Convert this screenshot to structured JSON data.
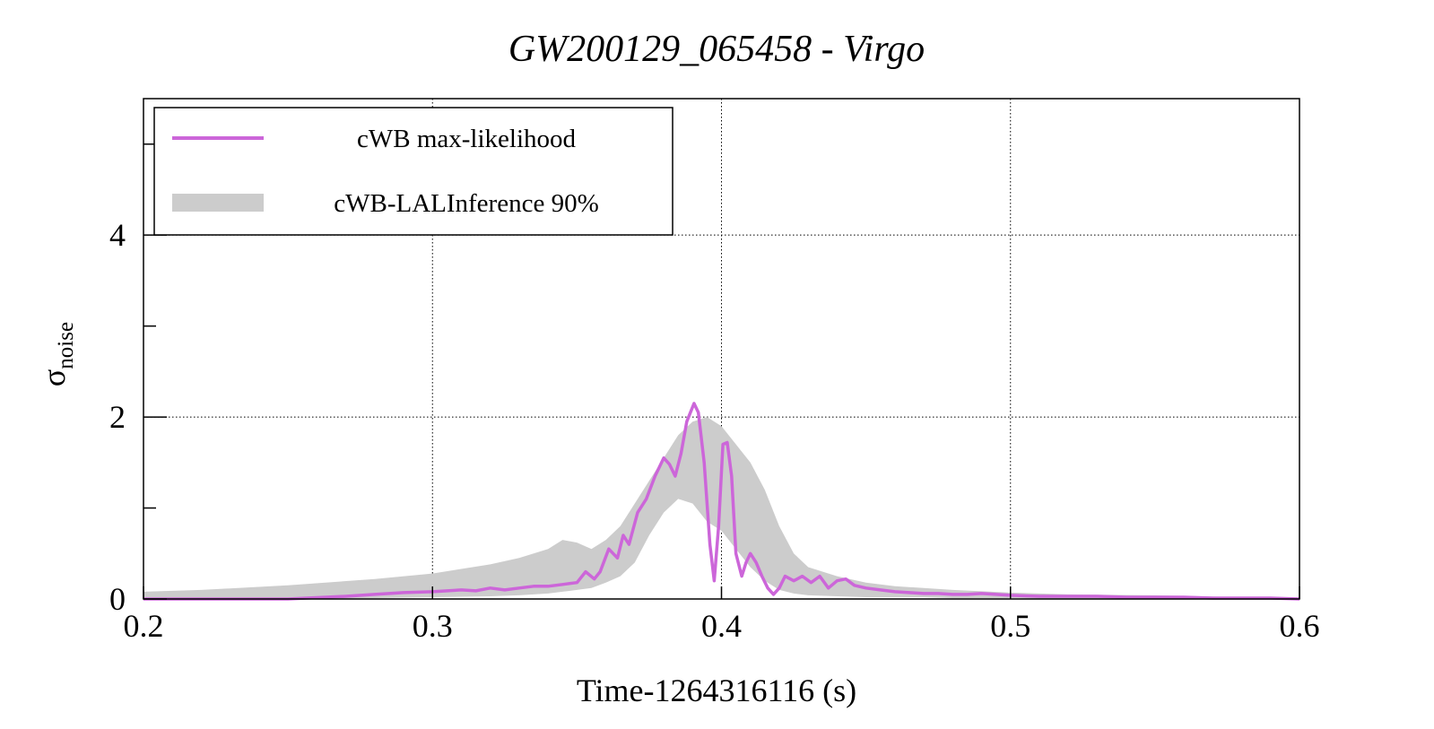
{
  "chart_data": {
    "type": "line",
    "title": "GW200129_065458 - Virgo",
    "xlabel": "Time-1264316116 (s)",
    "ylabel_main": "σ",
    "ylabel_sub": "noise",
    "xlim": [
      0.2,
      0.6
    ],
    "ylim": [
      0,
      5.5
    ],
    "xticks": [
      0.2,
      0.3,
      0.4,
      0.5,
      0.6
    ],
    "xtick_labels": [
      "0.2",
      "0.3",
      "0.4",
      "0.5",
      "0.6"
    ],
    "yticks": [
      0,
      2,
      4
    ],
    "ytick_labels": [
      "0",
      "2",
      "4"
    ],
    "ytick_minor": [
      1,
      3,
      5
    ],
    "grid": true,
    "legend_position": "top-left",
    "colors": {
      "line": "#cc66d9",
      "band": "#cccccc"
    },
    "series": [
      {
        "name": "cWB max-likelihood",
        "kind": "line",
        "x": [
          0.2,
          0.25,
          0.27,
          0.28,
          0.29,
          0.3,
          0.31,
          0.315,
          0.32,
          0.325,
          0.33,
          0.335,
          0.34,
          0.345,
          0.35,
          0.353,
          0.356,
          0.358,
          0.361,
          0.364,
          0.366,
          0.368,
          0.371,
          0.374,
          0.377,
          0.38,
          0.382,
          0.384,
          0.386,
          0.388,
          0.3905,
          0.392,
          0.394,
          0.396,
          0.3975,
          0.399,
          0.4005,
          0.402,
          0.4035,
          0.405,
          0.407,
          0.4085,
          0.41,
          0.412,
          0.414,
          0.416,
          0.418,
          0.42,
          0.422,
          0.425,
          0.428,
          0.431,
          0.434,
          0.437,
          0.44,
          0.443,
          0.446,
          0.45,
          0.455,
          0.46,
          0.465,
          0.47,
          0.475,
          0.48,
          0.485,
          0.49,
          0.495,
          0.5,
          0.51,
          0.52,
          0.53,
          0.54,
          0.55,
          0.56,
          0.57,
          0.58,
          0.59,
          0.6
        ],
        "y": [
          0.0,
          0.0,
          0.03,
          0.05,
          0.07,
          0.08,
          0.1,
          0.09,
          0.12,
          0.1,
          0.12,
          0.14,
          0.14,
          0.16,
          0.18,
          0.3,
          0.22,
          0.3,
          0.55,
          0.45,
          0.7,
          0.6,
          0.95,
          1.1,
          1.35,
          1.55,
          1.48,
          1.35,
          1.6,
          1.95,
          2.15,
          2.05,
          1.5,
          0.6,
          0.2,
          0.8,
          1.7,
          1.72,
          1.35,
          0.5,
          0.25,
          0.4,
          0.5,
          0.4,
          0.25,
          0.12,
          0.05,
          0.12,
          0.25,
          0.2,
          0.25,
          0.18,
          0.25,
          0.12,
          0.2,
          0.22,
          0.15,
          0.12,
          0.1,
          0.08,
          0.07,
          0.06,
          0.06,
          0.05,
          0.05,
          0.06,
          0.05,
          0.04,
          0.03,
          0.03,
          0.03,
          0.02,
          0.02,
          0.02,
          0.01,
          0.01,
          0.01,
          0.0
        ]
      },
      {
        "name": "cWB-LALInference 90%",
        "kind": "band",
        "x": [
          0.2,
          0.22,
          0.25,
          0.28,
          0.3,
          0.32,
          0.33,
          0.34,
          0.345,
          0.35,
          0.355,
          0.36,
          0.365,
          0.37,
          0.375,
          0.38,
          0.385,
          0.39,
          0.395,
          0.4,
          0.405,
          0.41,
          0.415,
          0.42,
          0.425,
          0.43,
          0.44,
          0.45,
          0.46,
          0.47,
          0.48,
          0.5,
          0.52,
          0.55,
          0.58,
          0.6
        ],
        "lower": [
          0.0,
          0.0,
          0.0,
          0.01,
          0.02,
          0.03,
          0.04,
          0.06,
          0.08,
          0.1,
          0.12,
          0.18,
          0.25,
          0.4,
          0.7,
          0.95,
          1.1,
          1.05,
          0.85,
          0.75,
          0.55,
          0.35,
          0.2,
          0.1,
          0.06,
          0.04,
          0.03,
          0.02,
          0.02,
          0.02,
          0.01,
          0.01,
          0.0,
          0.0,
          0.0,
          0.0
        ],
        "upper": [
          0.08,
          0.1,
          0.15,
          0.22,
          0.28,
          0.38,
          0.45,
          0.55,
          0.65,
          0.62,
          0.55,
          0.65,
          0.8,
          1.05,
          1.3,
          1.55,
          1.8,
          1.95,
          2.0,
          1.9,
          1.7,
          1.5,
          1.2,
          0.8,
          0.5,
          0.35,
          0.25,
          0.18,
          0.14,
          0.12,
          0.1,
          0.07,
          0.05,
          0.04,
          0.02,
          0.01
        ]
      }
    ]
  }
}
